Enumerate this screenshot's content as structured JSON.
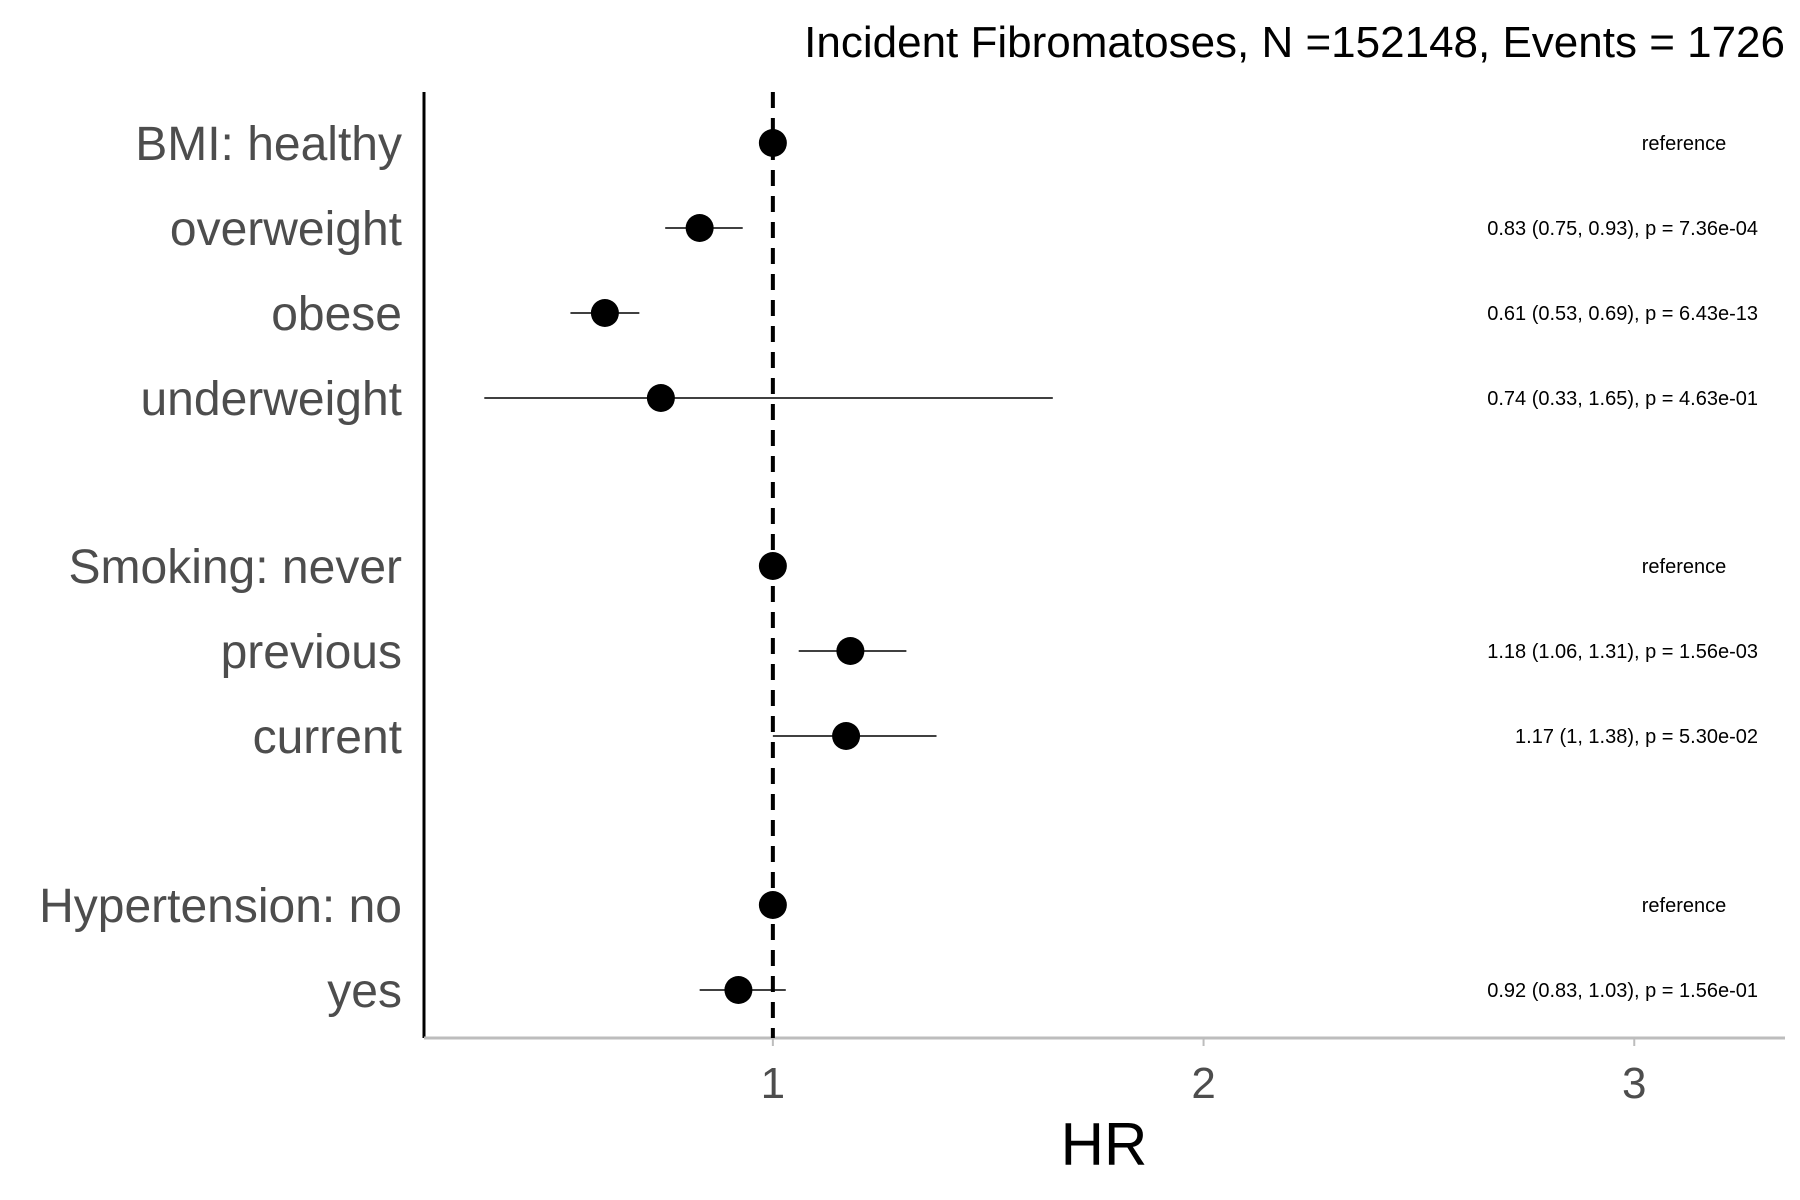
{
  "chart_data": {
    "type": "forest",
    "title": "Incident Fibromatoses, N =152148, Events = 1726",
    "xlabel": "HR",
    "xlim": [
      0.19,
      3.35
    ],
    "xticks": [
      1,
      2,
      3
    ],
    "reference_line": 1,
    "grid": false,
    "rows": [
      {
        "label": "BMI: healthy",
        "hr": 1.0,
        "lower": null,
        "upper": null,
        "annotation": "reference"
      },
      {
        "label": "overweight",
        "hr": 0.83,
        "lower": 0.75,
        "upper": 0.93,
        "annotation": "0.83 (0.75, 0.93), p = 7.36e-04"
      },
      {
        "label": "obese",
        "hr": 0.61,
        "lower": 0.53,
        "upper": 0.69,
        "annotation": "0.61 (0.53, 0.69), p = 6.43e-13"
      },
      {
        "label": "underweight",
        "hr": 0.74,
        "lower": 0.33,
        "upper": 1.65,
        "annotation": "0.74 (0.33, 1.65), p = 4.63e-01"
      },
      {
        "label": "Smoking: never",
        "hr": 1.0,
        "lower": null,
        "upper": null,
        "annotation": "reference"
      },
      {
        "label": "previous",
        "hr": 1.18,
        "lower": 1.06,
        "upper": 1.31,
        "annotation": "1.18 (1.06, 1.31), p = 1.56e-03"
      },
      {
        "label": "current",
        "hr": 1.17,
        "lower": 1.0,
        "upper": 1.38,
        "annotation": "1.17 (1, 1.38), p = 5.30e-02"
      },
      {
        "label": "Hypertension: no",
        "hr": 1.0,
        "lower": null,
        "upper": null,
        "annotation": "reference"
      },
      {
        "label": "yes",
        "hr": 0.92,
        "lower": 0.83,
        "upper": 1.03,
        "annotation": "0.92 (0.83, 1.03), p = 1.56e-01"
      }
    ]
  }
}
